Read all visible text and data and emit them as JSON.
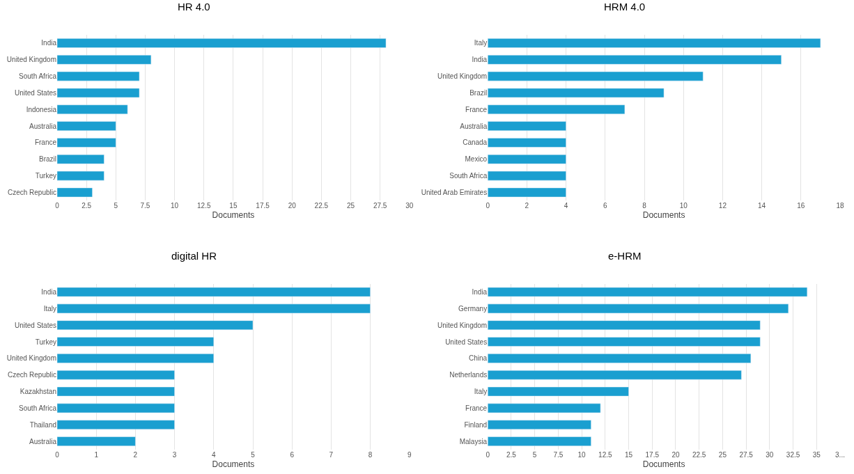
{
  "chart_data": [
    {
      "type": "bar",
      "orientation": "horizontal",
      "title": "HR 4.0",
      "xlabel": "Documents",
      "color": "#1a9fd0",
      "grid": "x",
      "categories": [
        "India",
        "United Kingdom",
        "South Africa",
        "United States",
        "Indonesia",
        "Australia",
        "France",
        "Brazil",
        "Turkey",
        "Czech Republic"
      ],
      "values": [
        28,
        8,
        7,
        7,
        6,
        5,
        5,
        4,
        4,
        3
      ],
      "xlim": [
        0,
        30
      ],
      "xticks": [
        0,
        2.5,
        5,
        7.5,
        10,
        12.5,
        15,
        17.5,
        20,
        22.5,
        25,
        27.5,
        30
      ]
    },
    {
      "type": "bar",
      "orientation": "horizontal",
      "title": "HRM 4.0",
      "xlabel": "Documents",
      "color": "#1a9fd0",
      "grid": "x",
      "categories": [
        "Italy",
        "India",
        "United Kingdom",
        "Brazil",
        "France",
        "Australia",
        "Canada",
        "Mexico",
        "South Africa",
        "United Arab Emirates"
      ],
      "values": [
        17,
        15,
        11,
        9,
        7,
        4,
        4,
        4,
        4,
        4
      ],
      "xlim": [
        0,
        18
      ],
      "xticks": [
        0,
        2,
        4,
        6,
        8,
        10,
        12,
        14,
        16,
        18
      ]
    },
    {
      "type": "bar",
      "orientation": "horizontal",
      "title": "digital HR",
      "xlabel": "Documents",
      "color": "#1a9fd0",
      "grid": "x",
      "categories": [
        "India",
        "Italy",
        "United States",
        "Turkey",
        "United Kingdom",
        "Czech Republic",
        "Kazakhstan",
        "South Africa",
        "Thailand",
        "Australia"
      ],
      "values": [
        8,
        8,
        5,
        4,
        4,
        3,
        3,
        3,
        3,
        2
      ],
      "xlim": [
        0,
        9
      ],
      "xticks": [
        0,
        1,
        2,
        3,
        4,
        5,
        6,
        7,
        8,
        9
      ]
    },
    {
      "type": "bar",
      "orientation": "horizontal",
      "title": "e-HRM",
      "xlabel": "Documents",
      "color": "#1a9fd0",
      "grid": "x",
      "categories": [
        "India",
        "Germany",
        "United Kingdom",
        "United States",
        "China",
        "Netherlands",
        "Italy",
        "France",
        "Finland",
        "Malaysia"
      ],
      "values": [
        34,
        32,
        29,
        29,
        28,
        27,
        15,
        12,
        11,
        11
      ],
      "xlim": [
        0,
        37.5
      ],
      "xticks": [
        0,
        2.5,
        5,
        7.5,
        10,
        12.5,
        15,
        17.5,
        20,
        22.5,
        25,
        27.5,
        30,
        32.5,
        35,
        {
          "value": 37.5,
          "label": "3..."
        }
      ]
    }
  ]
}
